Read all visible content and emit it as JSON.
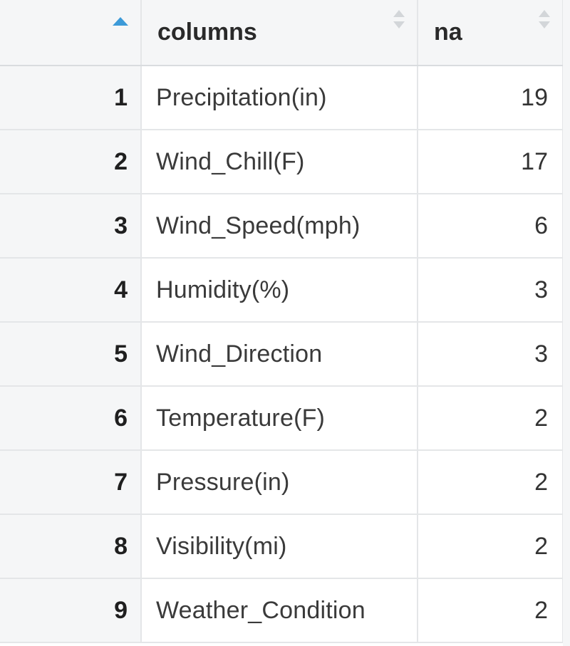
{
  "table": {
    "columns": [
      {
        "key": "index",
        "label": "",
        "sorted": "ascending"
      },
      {
        "key": "columns",
        "label": "columns"
      },
      {
        "key": "na",
        "label": "na"
      }
    ],
    "rows": [
      {
        "index": "1",
        "columns": "Precipitation(in)",
        "na": "19"
      },
      {
        "index": "2",
        "columns": "Wind_Chill(F)",
        "na": "17"
      },
      {
        "index": "3",
        "columns": "Wind_Speed(mph)",
        "na": "6"
      },
      {
        "index": "4",
        "columns": "Humidity(%)",
        "na": "3"
      },
      {
        "index": "5",
        "columns": "Wind_Direction",
        "na": "3"
      },
      {
        "index": "6",
        "columns": "Temperature(F)",
        "na": "2"
      },
      {
        "index": "7",
        "columns": "Pressure(in)",
        "na": "2"
      },
      {
        "index": "8",
        "columns": "Visibility(mi)",
        "na": "2"
      },
      {
        "index": "9",
        "columns": "Weather_Condition",
        "na": "2"
      }
    ]
  },
  "icons": {
    "index_sort": "sort-ascending-icon",
    "column_sort": "sort-toggle-icon"
  },
  "colors": {
    "sort_accent": "#3c9ad8",
    "header_background": "#f5f6f7",
    "grid_line": "#e4e6e8"
  }
}
